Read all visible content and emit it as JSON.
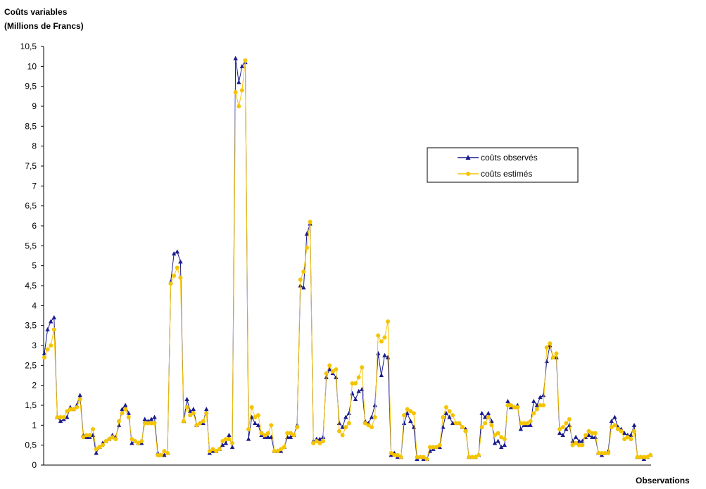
{
  "chart_data": {
    "type": "line",
    "ylabel_line1": "Coûts variables",
    "ylabel_line2": "(Millions de Francs)",
    "xlabel": "Observations",
    "ylim": [
      0,
      10.5
    ],
    "yticks": [
      "0",
      "0,5",
      "1",
      "1,5",
      "2",
      "2,5",
      "3",
      "3,5",
      "4",
      "4,5",
      "5",
      "5,5",
      "6",
      "6,5",
      "7",
      "7,5",
      "8",
      "8,5",
      "9",
      "9,5",
      "10",
      "10,5"
    ],
    "grid": false,
    "legend": "inside-right",
    "series": [
      {
        "name": "coûts observés",
        "color": "#1a1a8c",
        "marker": "triangle",
        "values": [
          2.8,
          3.4,
          3.6,
          3.7,
          1.2,
          1.1,
          1.15,
          1.2,
          1.45,
          1.4,
          1.5,
          1.75,
          0.75,
          0.7,
          0.7,
          0.75,
          0.3,
          0.45,
          0.55,
          0.6,
          0.65,
          0.75,
          0.7,
          1.0,
          1.4,
          1.5,
          1.3,
          0.55,
          0.6,
          0.55,
          0.55,
          1.15,
          1.1,
          1.15,
          1.2,
          0.3,
          0.25,
          0.25,
          0.3,
          4.6,
          5.3,
          5.35,
          5.1,
          1.1,
          1.65,
          1.35,
          1.4,
          1.0,
          1.05,
          1.05,
          1.4,
          0.3,
          0.35,
          0.35,
          0.4,
          0.5,
          0.55,
          0.75,
          0.45,
          10.2,
          9.6,
          10.0,
          10.1,
          0.65,
          1.2,
          1.05,
          1.0,
          0.75,
          0.7,
          0.7,
          0.7,
          0.35,
          0.35,
          0.35,
          0.45,
          0.7,
          0.7,
          0.75,
          1.0,
          4.5,
          4.45,
          5.8,
          6.05,
          0.6,
          0.65,
          0.65,
          0.7,
          2.2,
          2.4,
          2.3,
          2.2,
          1.05,
          0.95,
          1.2,
          1.3,
          1.8,
          1.65,
          1.85,
          1.9,
          1.1,
          1.05,
          1.2,
          1.5,
          2.8,
          2.25,
          2.75,
          2.7,
          0.25,
          0.3,
          0.2,
          0.2,
          1.05,
          1.3,
          1.1,
          0.95,
          0.15,
          0.2,
          0.15,
          0.15,
          0.35,
          0.4,
          0.45,
          0.45,
          0.95,
          1.3,
          1.2,
          1.05,
          1.05,
          1.05,
          0.95,
          0.9,
          0.2,
          0.2,
          0.2,
          0.25,
          1.3,
          1.2,
          1.3,
          1.1,
          0.55,
          0.6,
          0.45,
          0.5,
          1.6,
          1.45,
          1.45,
          1.5,
          0.9,
          1.0,
          1.0,
          1.0,
          1.6,
          1.5,
          1.7,
          1.75,
          2.6,
          3.0,
          2.7,
          2.7,
          0.8,
          0.75,
          0.9,
          1.0,
          0.6,
          0.7,
          0.6,
          0.6,
          0.7,
          0.75,
          0.7,
          0.7,
          0.3,
          0.25,
          0.3,
          0.35,
          1.1,
          1.2,
          0.95,
          0.9,
          0.8,
          0.75,
          0.75,
          1.0,
          0.2,
          0.2,
          0.15,
          0.2,
          0.25
        ]
      },
      {
        "name": "coûts estimés",
        "color": "#f5c400",
        "marker": "circle",
        "values": [
          2.7,
          2.9,
          3.0,
          3.4,
          1.2,
          1.2,
          1.2,
          1.35,
          1.4,
          1.4,
          1.45,
          1.65,
          0.7,
          0.75,
          0.75,
          0.9,
          0.4,
          0.45,
          0.5,
          0.6,
          0.65,
          0.7,
          0.65,
          1.1,
          1.3,
          1.4,
          1.2,
          0.65,
          0.6,
          0.55,
          0.6,
          1.05,
          1.05,
          1.05,
          1.05,
          0.25,
          0.25,
          0.35,
          0.3,
          4.55,
          4.75,
          4.95,
          4.7,
          1.1,
          1.45,
          1.25,
          1.3,
          1.0,
          1.05,
          1.1,
          1.3,
          0.35,
          0.4,
          0.35,
          0.4,
          0.6,
          0.65,
          0.65,
          0.55,
          9.35,
          9.0,
          9.4,
          10.15,
          0.9,
          1.45,
          1.2,
          1.25,
          0.8,
          0.75,
          0.8,
          1.0,
          0.35,
          0.35,
          0.4,
          0.45,
          0.8,
          0.8,
          0.75,
          0.95,
          4.65,
          4.85,
          5.45,
          6.1,
          0.55,
          0.6,
          0.55,
          0.6,
          2.3,
          2.5,
          2.35,
          2.4,
          0.85,
          0.75,
          0.95,
          1.05,
          2.05,
          2.05,
          2.2,
          2.45,
          1.05,
          1.0,
          0.95,
          1.2,
          3.25,
          3.1,
          3.2,
          3.6,
          0.3,
          0.25,
          0.25,
          0.2,
          1.25,
          1.4,
          1.35,
          1.3,
          0.2,
          0.2,
          0.2,
          0.15,
          0.45,
          0.45,
          0.45,
          0.5,
          1.2,
          1.45,
          1.35,
          1.25,
          1.05,
          1.05,
          0.95,
          0.85,
          0.2,
          0.2,
          0.2,
          0.25,
          0.95,
          1.05,
          1.2,
          1.0,
          0.75,
          0.8,
          0.7,
          0.65,
          1.5,
          1.5,
          1.45,
          1.45,
          1.05,
          1.05,
          1.05,
          1.1,
          1.3,
          1.4,
          1.5,
          1.5,
          2.95,
          3.05,
          2.7,
          2.8,
          0.9,
          0.95,
          1.05,
          1.15,
          0.5,
          0.55,
          0.5,
          0.5,
          0.75,
          0.85,
          0.8,
          0.8,
          0.3,
          0.3,
          0.3,
          0.3,
          0.95,
          1.0,
          0.9,
          0.85,
          0.65,
          0.7,
          0.65,
          0.85,
          0.2,
          0.2,
          0.2,
          0.2,
          0.25
        ]
      }
    ]
  }
}
